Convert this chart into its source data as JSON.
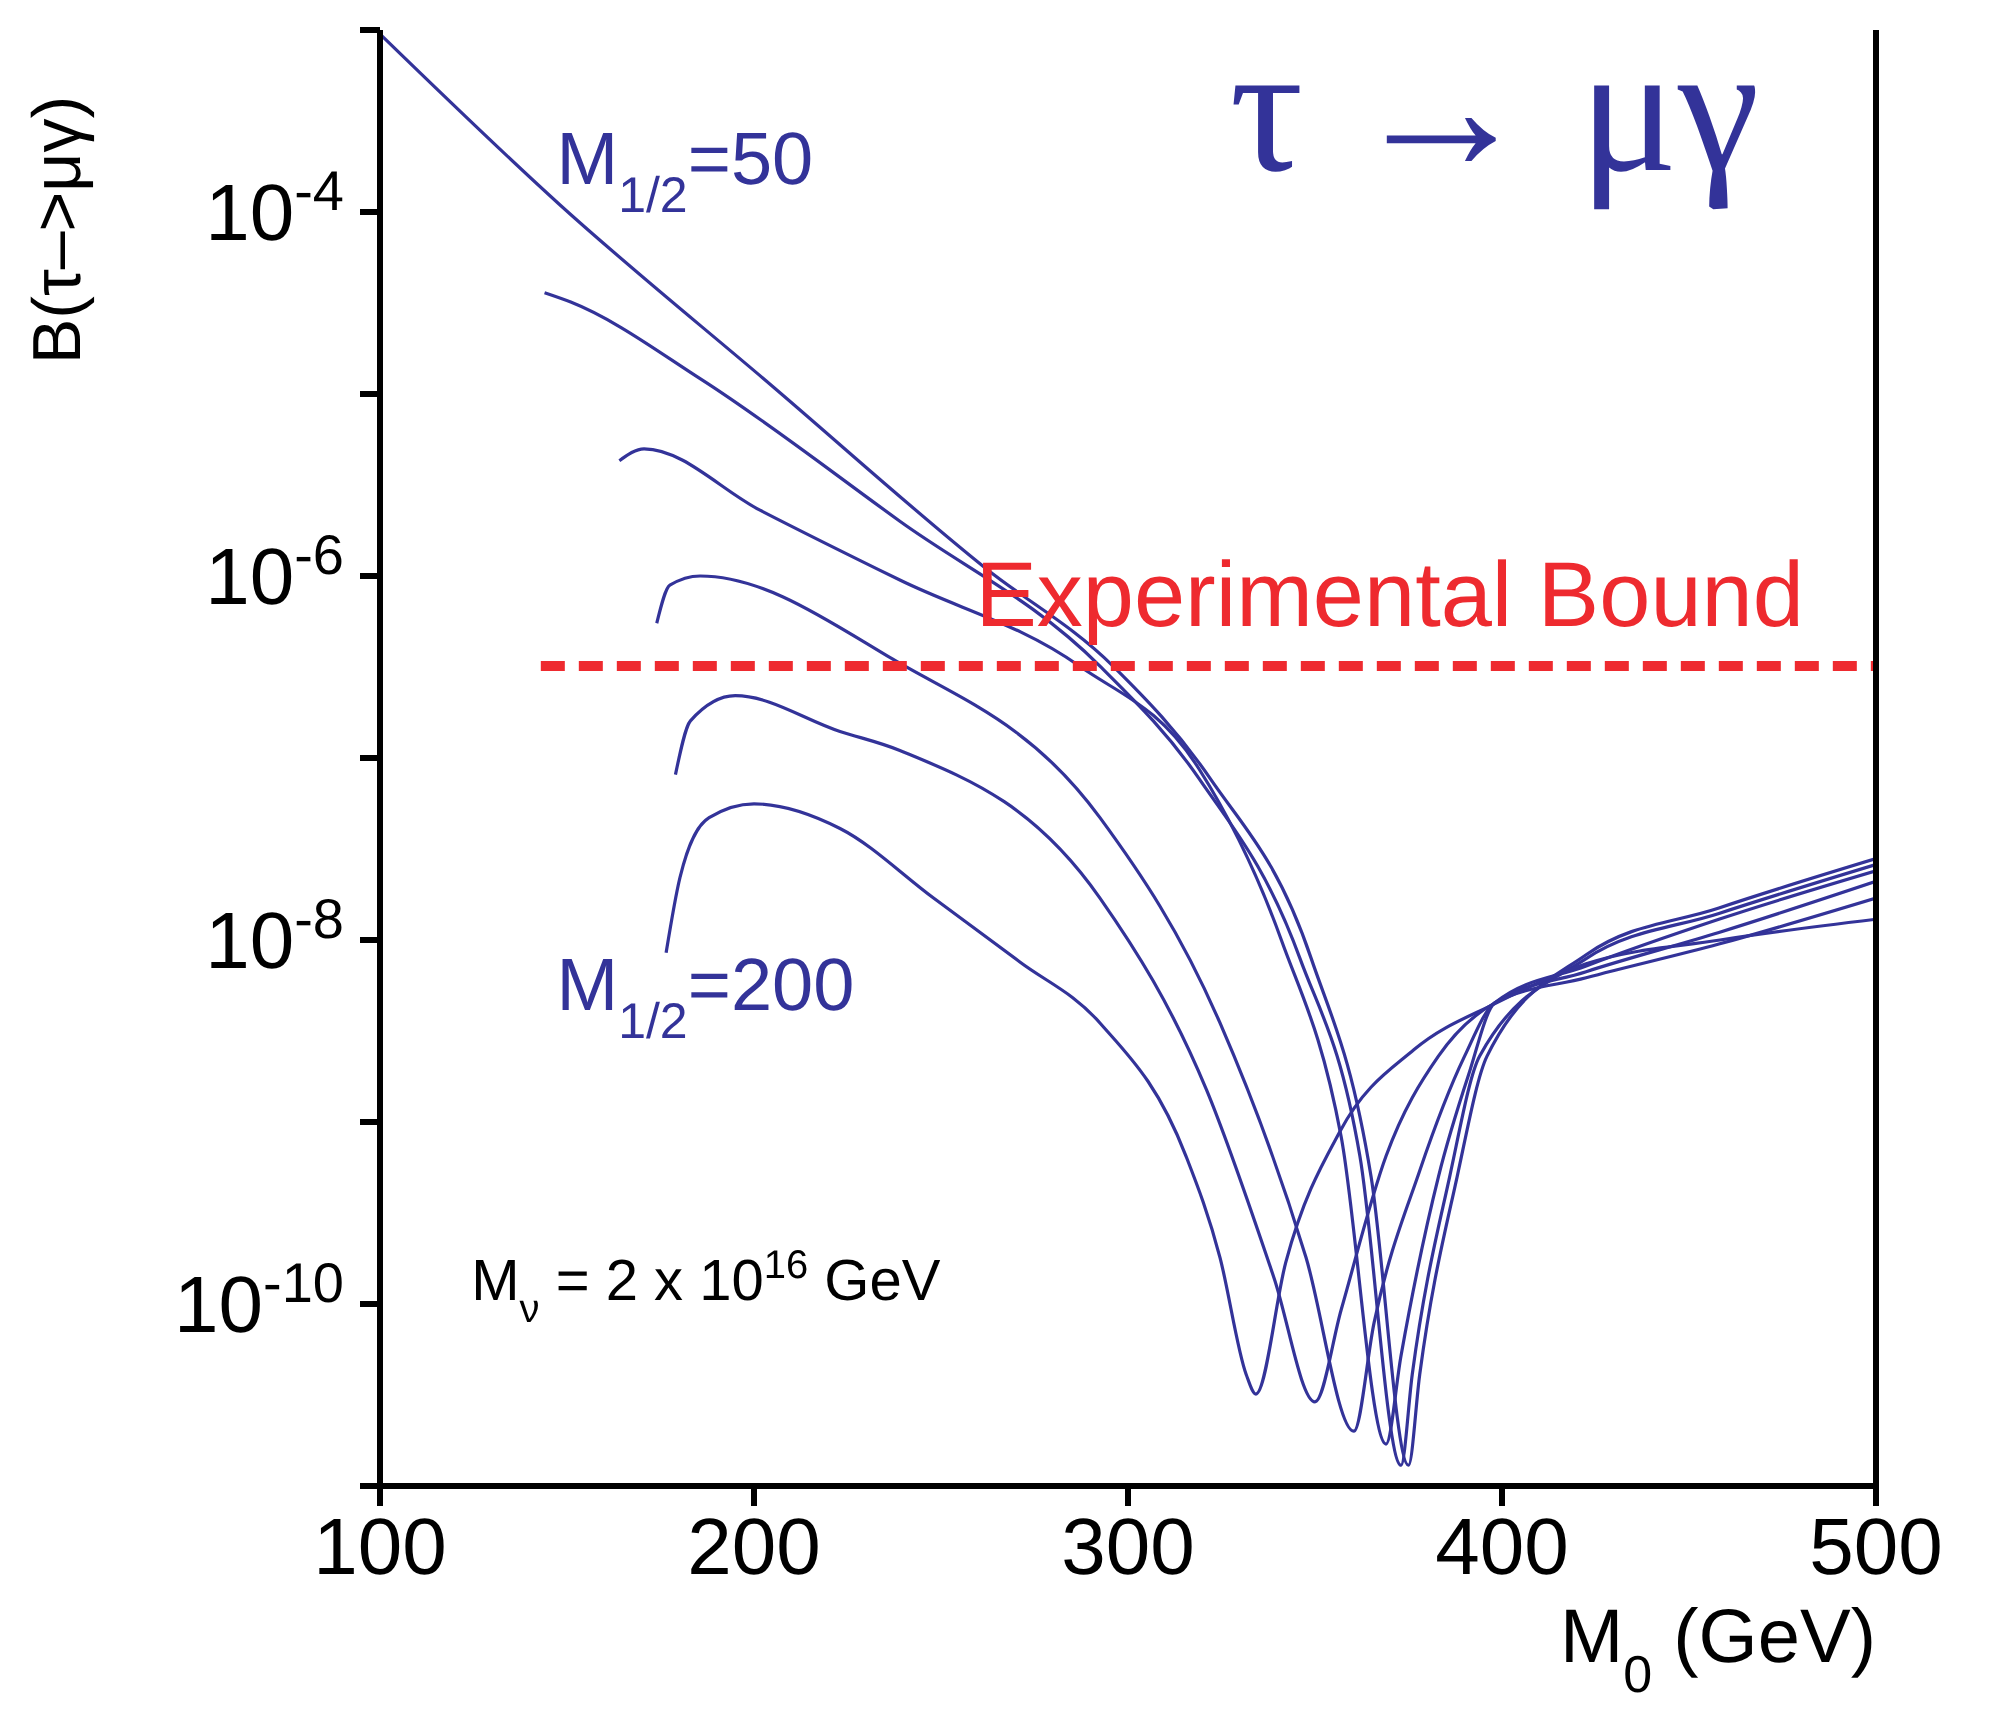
{
  "chart_data": {
    "type": "line",
    "title": "τ → μγ",
    "xlabel": "M$_{0}$ (GeV)",
    "ylabel": "B(τ–>μγ)",
    "log": "y",
    "xlim": [
      100,
      500
    ],
    "xticks": [
      100,
      200,
      300,
      400,
      500
    ],
    "ylim": [
      1e-11,
      0.001
    ],
    "yticks": [
      {
        "value": 1e-11,
        "label": null
      },
      {
        "value": 1e-10,
        "label": "10$^{-10}$"
      },
      {
        "value": 1e-09,
        "label": null
      },
      {
        "value": 1e-08,
        "label": "10$^{-8}$"
      },
      {
        "value": 1e-07,
        "label": null
      },
      {
        "value": 1e-06,
        "label": "10$^{-6}$"
      },
      {
        "value": 1e-05,
        "label": null
      },
      {
        "value": 0.0001,
        "label": "10$^{-4}$"
      },
      {
        "value": 0.001,
        "label": null
      }
    ],
    "series": [
      {
        "color": "#333399",
        "x": [
          100,
          148,
          205,
          262,
          296,
          322,
          349,
          365,
          375,
          378,
          388,
          396,
          422.5,
          458,
          500
        ],
        "values": [
          0.00095,
          0.00011,
          1.1e-05,
          1.1e-06,
          3.2e-07,
          7.7e-08,
          7.9e-09,
          5e-10,
          1.3e-11,
          4.1e-11,
          5e-10,
          2.3e-09,
          8.3e-09,
          1.5e-08,
          2.8e-08
        ]
      },
      {
        "color": "#333399",
        "x": [
          144,
          151,
          186,
          239,
          292.5,
          319,
          346,
          362,
          373,
          376,
          386,
          394,
          422.5,
          458,
          500
        ],
        "values": [
          3.6e-05,
          3.2e-05,
          1.2e-05,
          2e-06,
          3.2e-07,
          7.7e-08,
          7.9e-09,
          6.5e-10,
          1.3e-11,
          4.1e-11,
          5e-10,
          2.3e-09,
          7.9e-09,
          1.4e-08,
          2.6e-08
        ]
      },
      {
        "color": "#333399",
        "x": [
          164,
          170.6,
          201.6,
          239,
          287,
          319,
          341,
          357,
          369,
          373,
          383,
          391,
          398,
          422.5,
          458,
          500
        ],
        "values": [
          4.3e-06,
          5e-06,
          2.3e-06,
          9.5e-07,
          3.2e-07,
          8.7e-08,
          1e-08,
          8.3e-10,
          1.7e-11,
          5.2e-11,
          5e-10,
          1.8e-09,
          4.5e-09,
          7.2e-09,
          1.3e-08,
          2.4e-08
        ]
      },
      {
        "color": "#333399",
        "x": [
          174,
          177.5,
          185.6,
          237,
          292.5,
          324.6,
          347.6,
          360.4,
          365.8,
          378,
          390,
          398,
          422.5,
          458,
          500
        ],
        "values": [
          5.5e-07,
          8.9e-07,
          1e-06,
          3.5e-07,
          4.7e-08,
          3.5e-09,
          1.8e-10,
          2e-11,
          7.9e-11,
          5.4e-10,
          2.3e-09,
          4.5e-09,
          6.7e-09,
          1.1e-08,
          2.1e-08
        ]
      },
      {
        "color": "#333399",
        "x": [
          179,
          183,
          195,
          223,
          239,
          292.5,
          321,
          339,
          350,
          357,
          369,
          383,
          398,
          422.5,
          458,
          500
        ],
        "values": [
          8.1e-08,
          1.6e-07,
          2.2e-07,
          1.4e-07,
          1.1e-07,
          1.7e-08,
          1.5e-09,
          1.4e-10,
          2.9e-11,
          9.3e-11,
          6.5e-10,
          2.3e-09,
          4.5e-09,
          6.2e-09,
          9.5e-09,
          1.7e-08
        ]
      },
      {
        "color": "#333399",
        "x": [
          176.5,
          180.2,
          188,
          200,
          223,
          248,
          271,
          292.5,
          315.5,
          324.6,
          331.6,
          334.2,
          342.2,
          356.7,
          376.5,
          398.4,
          422.5,
          458.3,
          500
        ],
        "values": [
          8.5e-09,
          2.2e-08,
          4.7e-08,
          5.6e-08,
          4.1e-08,
          1.7e-08,
          7.6e-09,
          3.5e-09,
          6.5e-10,
          1.8e-10,
          4.1e-11,
          3.2e-11,
          1.7e-10,
          8.9e-10,
          2.5e-09,
          4.5e-09,
          7.4e-09,
          1e-08,
          1.3e-08
        ]
      },
      {
        "color": "#ee2a2f",
        "line_style": "dashed",
        "x": [
          143,
          500
        ],
        "values": [
          3.2e-07,
          3.2e-07
        ]
      }
    ],
    "annotations": [
      "M$_{1/2}$=50",
      "M$_{1/2}$=200",
      "Experimental Bound",
      "M$_{ν}$ = 2 x 10$^{16}$ GeV"
    ]
  }
}
